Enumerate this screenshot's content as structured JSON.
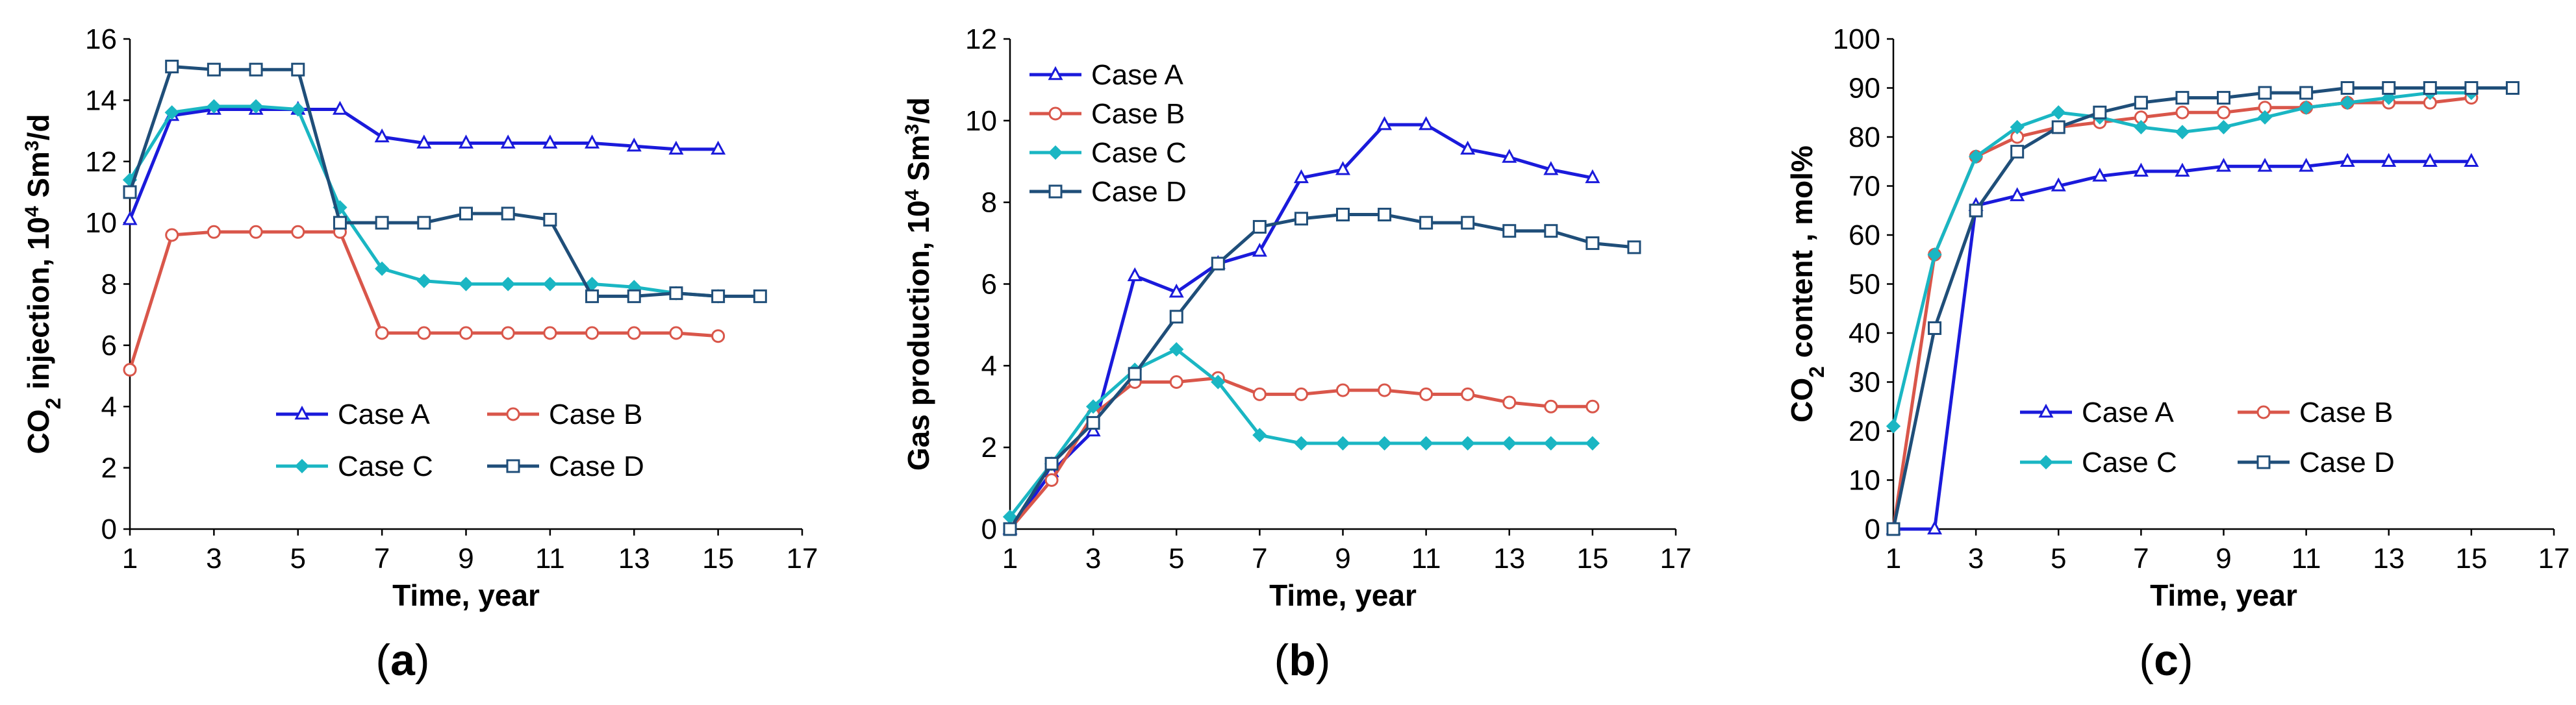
{
  "colors": {
    "case_a": "#1a1adb",
    "case_b": "#d9564a",
    "case_c": "#1ab6c3",
    "case_d": "#1f4e79"
  },
  "chart_data": [
    {
      "type": "line",
      "caption": "(a)",
      "xlabel": "Time, year",
      "ylabel": {
        "p1": "CO",
        "sub": "2",
        "p2": " injection, 10",
        "sup": "4",
        "p3": " Sm",
        "sup2": "3",
        "p4": "/d"
      },
      "xlim": [
        1,
        17
      ],
      "ylim": [
        0,
        16
      ],
      "xticks": [
        1,
        3,
        5,
        7,
        9,
        11,
        13,
        15,
        17
      ],
      "yticks": [
        0,
        2,
        4,
        6,
        8,
        10,
        12,
        14,
        16
      ],
      "legend_layout": "grid-2x2-bottom-right",
      "series": [
        {
          "name": "Case A",
          "marker": "triangle",
          "x": [
            1,
            2,
            3,
            4,
            5,
            6,
            7,
            8,
            9,
            10,
            11,
            12,
            13,
            14,
            15
          ],
          "y": [
            10.1,
            13.5,
            13.7,
            13.7,
            13.7,
            13.7,
            12.8,
            12.6,
            12.6,
            12.6,
            12.6,
            12.6,
            12.5,
            12.4,
            12.4
          ]
        },
        {
          "name": "Case B",
          "marker": "circle",
          "x": [
            1,
            2,
            3,
            4,
            5,
            6,
            7,
            8,
            9,
            10,
            11,
            12,
            13,
            14,
            15
          ],
          "y": [
            5.2,
            9.6,
            9.7,
            9.7,
            9.7,
            9.7,
            6.4,
            6.4,
            6.4,
            6.4,
            6.4,
            6.4,
            6.4,
            6.4,
            6.3
          ]
        },
        {
          "name": "Case C",
          "marker": "diamond",
          "x": [
            1,
            2,
            3,
            4,
            5,
            6,
            7,
            8,
            9,
            10,
            11,
            12,
            13,
            14,
            15
          ],
          "y": [
            11.4,
            13.6,
            13.8,
            13.8,
            13.7,
            10.5,
            8.5,
            8.1,
            8.0,
            8.0,
            8.0,
            8.0,
            7.9,
            7.7,
            7.6
          ]
        },
        {
          "name": "Case D",
          "marker": "square",
          "x": [
            1,
            2,
            3,
            4,
            5,
            6,
            7,
            8,
            9,
            10,
            11,
            12,
            13,
            14,
            15,
            16
          ],
          "y": [
            11.0,
            15.1,
            15.0,
            15.0,
            15.0,
            10.0,
            10.0,
            10.0,
            10.3,
            10.3,
            10.1,
            7.6,
            7.6,
            7.7,
            7.6,
            7.6
          ]
        }
      ]
    },
    {
      "type": "line",
      "caption": "(b)",
      "xlabel": "Time, year",
      "ylabel": {
        "p1": "Gas production, 10",
        "sup": "4",
        "p2": " Sm",
        "sup2": "3",
        "p3": "/d"
      },
      "xlim": [
        1,
        17
      ],
      "ylim": [
        0,
        12
      ],
      "xticks": [
        1,
        3,
        5,
        7,
        9,
        11,
        13,
        15,
        17
      ],
      "yticks": [
        0,
        2,
        4,
        6,
        8,
        10,
        12
      ],
      "legend_layout": "column-top-left",
      "series": [
        {
          "name": "Case A",
          "marker": "triangle",
          "x": [
            1,
            2,
            3,
            4,
            5,
            6,
            7,
            8,
            9,
            10,
            11,
            12,
            13,
            14,
            15
          ],
          "y": [
            0.0,
            1.4,
            2.4,
            6.2,
            5.8,
            6.5,
            6.8,
            8.6,
            8.8,
            9.9,
            9.9,
            9.3,
            9.1,
            8.8,
            8.6
          ]
        },
        {
          "name": "Case B",
          "marker": "circle",
          "x": [
            1,
            2,
            3,
            4,
            5,
            6,
            7,
            8,
            9,
            10,
            11,
            12,
            13,
            14,
            15
          ],
          "y": [
            0.0,
            1.2,
            2.8,
            3.6,
            3.6,
            3.7,
            3.3,
            3.3,
            3.4,
            3.4,
            3.3,
            3.3,
            3.1,
            3.0,
            3.0
          ]
        },
        {
          "name": "Case C",
          "marker": "diamond",
          "x": [
            1,
            2,
            3,
            4,
            5,
            6,
            7,
            8,
            9,
            10,
            11,
            12,
            13,
            14,
            15
          ],
          "y": [
            0.3,
            1.6,
            3.0,
            3.9,
            4.4,
            3.6,
            2.3,
            2.1,
            2.1,
            2.1,
            2.1,
            2.1,
            2.1,
            2.1,
            2.1
          ]
        },
        {
          "name": "Case D",
          "marker": "square",
          "x": [
            1,
            2,
            3,
            4,
            5,
            6,
            7,
            8,
            9,
            10,
            11,
            12,
            13,
            14,
            15,
            16
          ],
          "y": [
            0.0,
            1.6,
            2.6,
            3.8,
            5.2,
            6.5,
            7.4,
            7.6,
            7.7,
            7.7,
            7.5,
            7.5,
            7.3,
            7.3,
            7.0,
            6.9
          ]
        }
      ]
    },
    {
      "type": "line",
      "caption": "(c)",
      "xlabel": "Time, year",
      "ylabel": {
        "p1": "CO",
        "sub": "2",
        "p2": " content , mol%"
      },
      "xlim": [
        1,
        17
      ],
      "ylim": [
        0,
        100
      ],
      "xticks": [
        1,
        3,
        5,
        7,
        9,
        11,
        13,
        15,
        17
      ],
      "yticks": [
        0,
        10,
        20,
        30,
        40,
        50,
        60,
        70,
        80,
        90,
        100
      ],
      "legend_layout": "grid-2x2-bottom-right",
      "series": [
        {
          "name": "Case A",
          "marker": "triangle",
          "x": [
            1,
            2,
            3,
            4,
            5,
            6,
            7,
            8,
            9,
            10,
            11,
            12,
            13,
            14,
            15
          ],
          "y": [
            0,
            0,
            66,
            68,
            70,
            72,
            73,
            73,
            74,
            74,
            74,
            75,
            75,
            75,
            75
          ]
        },
        {
          "name": "Case B",
          "marker": "circle",
          "x": [
            1,
            2,
            3,
            4,
            5,
            6,
            7,
            8,
            9,
            10,
            11,
            12,
            13,
            14,
            15
          ],
          "y": [
            0,
            56,
            76,
            80,
            82,
            83,
            84,
            85,
            85,
            86,
            86,
            87,
            87,
            87,
            88
          ]
        },
        {
          "name": "Case C",
          "marker": "diamond",
          "x": [
            1,
            2,
            3,
            4,
            5,
            6,
            7,
            8,
            9,
            10,
            11,
            12,
            13,
            14,
            15
          ],
          "y": [
            21,
            56,
            76,
            82,
            85,
            84,
            82,
            81,
            82,
            84,
            86,
            87,
            88,
            89,
            89
          ]
        },
        {
          "name": "Case D",
          "marker": "square",
          "x": [
            1,
            2,
            3,
            4,
            5,
            6,
            7,
            8,
            9,
            10,
            11,
            12,
            13,
            14,
            15,
            16
          ],
          "y": [
            0,
            41,
            65,
            77,
            82,
            85,
            87,
            88,
            88,
            89,
            89,
            90,
            90,
            90,
            90,
            90
          ]
        }
      ]
    }
  ]
}
